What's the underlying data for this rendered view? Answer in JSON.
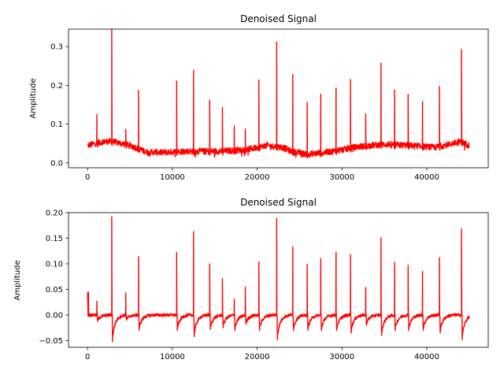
{
  "chart_data": [
    {
      "type": "line",
      "title": "Denoised Signal",
      "xlabel": "",
      "ylabel": "Amplitude",
      "xlim": [
        -2250,
        47250
      ],
      "ylim": [
        -0.0125,
        0.345
      ],
      "xticks": [
        0,
        10000,
        20000,
        30000,
        40000
      ],
      "yticks": [
        0.0,
        0.1,
        0.2,
        0.3
      ],
      "ytick_labels": [
        "0.0",
        "0.1",
        "0.2",
        "0.3"
      ],
      "grid": false,
      "line_color": "#ff0000",
      "baseline_points": [
        [
          0,
          0.045
        ],
        [
          900,
          0.05
        ],
        [
          2000,
          0.055
        ],
        [
          3000,
          0.055
        ],
        [
          5000,
          0.045
        ],
        [
          7000,
          0.028
        ],
        [
          9000,
          0.027
        ],
        [
          11000,
          0.03
        ],
        [
          13000,
          0.03
        ],
        [
          16000,
          0.03
        ],
        [
          19000,
          0.035
        ],
        [
          21000,
          0.045
        ],
        [
          23000,
          0.04
        ],
        [
          24000,
          0.03
        ],
        [
          26000,
          0.022
        ],
        [
          29000,
          0.03
        ],
        [
          32000,
          0.042
        ],
        [
          35000,
          0.048
        ],
        [
          38000,
          0.045
        ],
        [
          41000,
          0.04
        ],
        [
          44000,
          0.055
        ],
        [
          45000,
          0.045
        ]
      ],
      "noise_amplitude": 0.008,
      "peaks": [
        {
          "x": 1100,
          "y": 0.125
        },
        {
          "x": 2850,
          "y": 0.345
        },
        {
          "x": 4500,
          "y": 0.087
        },
        {
          "x": 6000,
          "y": 0.187
        },
        {
          "x": 10500,
          "y": 0.211
        },
        {
          "x": 12500,
          "y": 0.239
        },
        {
          "x": 14400,
          "y": 0.162
        },
        {
          "x": 15900,
          "y": 0.143
        },
        {
          "x": 17300,
          "y": 0.095
        },
        {
          "x": 18600,
          "y": 0.087
        },
        {
          "x": 20200,
          "y": 0.214
        },
        {
          "x": 22300,
          "y": 0.312
        },
        {
          "x": 24200,
          "y": 0.228
        },
        {
          "x": 25900,
          "y": 0.156
        },
        {
          "x": 27500,
          "y": 0.177
        },
        {
          "x": 29300,
          "y": 0.193
        },
        {
          "x": 31000,
          "y": 0.215
        },
        {
          "x": 32800,
          "y": 0.126
        },
        {
          "x": 34600,
          "y": 0.257
        },
        {
          "x": 36200,
          "y": 0.188
        },
        {
          "x": 37800,
          "y": 0.177
        },
        {
          "x": 39500,
          "y": 0.158
        },
        {
          "x": 41500,
          "y": 0.197
        },
        {
          "x": 44100,
          "y": 0.292
        }
      ]
    },
    {
      "type": "line",
      "title": "Denoised Signal",
      "xlabel": "",
      "ylabel": "Amplitude",
      "xlim": [
        -2250,
        47250
      ],
      "ylim": [
        -0.063,
        0.2
      ],
      "xticks": [
        0,
        10000,
        20000,
        30000,
        40000
      ],
      "yticks": [
        -0.05,
        0.0,
        0.05,
        0.1,
        0.15,
        0.2
      ],
      "ytick_labels": [
        "−0.05",
        "0.00",
        "0.05",
        "0.10",
        "0.15",
        "0.20"
      ],
      "grid": false,
      "line_color": "#ff0000",
      "baseline_points": [
        [
          0,
          0.0
        ],
        [
          45000,
          0.0
        ]
      ],
      "noise_amplitude": 0.003,
      "start_spike": {
        "x": 100,
        "y": 0.045
      },
      "peaks": [
        {
          "x": 1100,
          "y": 0.027,
          "trough": -0.012
        },
        {
          "x": 2850,
          "y": 0.192,
          "trough": -0.052
        },
        {
          "x": 4500,
          "y": 0.043,
          "trough": -0.01
        },
        {
          "x": 6000,
          "y": 0.114,
          "trough": -0.03
        },
        {
          "x": 10500,
          "y": 0.122,
          "trough": -0.03
        },
        {
          "x": 12500,
          "y": 0.163,
          "trough": -0.042
        },
        {
          "x": 14400,
          "y": 0.1,
          "trough": -0.028
        },
        {
          "x": 15900,
          "y": 0.071,
          "trough": -0.025
        },
        {
          "x": 17300,
          "y": 0.031,
          "trough": -0.03
        },
        {
          "x": 18600,
          "y": 0.055,
          "trough": -0.018
        },
        {
          "x": 20200,
          "y": 0.104,
          "trough": -0.03
        },
        {
          "x": 22300,
          "y": 0.189,
          "trough": -0.048
        },
        {
          "x": 24200,
          "y": 0.133,
          "trough": -0.03
        },
        {
          "x": 25900,
          "y": 0.099,
          "trough": -0.03
        },
        {
          "x": 27500,
          "y": 0.11,
          "trough": -0.03
        },
        {
          "x": 29300,
          "y": 0.123,
          "trough": -0.03
        },
        {
          "x": 31000,
          "y": 0.118,
          "trough": -0.035
        },
        {
          "x": 32800,
          "y": 0.054,
          "trough": -0.02
        },
        {
          "x": 34600,
          "y": 0.151,
          "trough": -0.04
        },
        {
          "x": 36200,
          "y": 0.103,
          "trough": -0.03
        },
        {
          "x": 37800,
          "y": 0.097,
          "trough": -0.03
        },
        {
          "x": 39500,
          "y": 0.085,
          "trough": -0.03
        },
        {
          "x": 41500,
          "y": 0.112,
          "trough": -0.035
        },
        {
          "x": 44100,
          "y": 0.168,
          "trough": -0.048
        }
      ]
    }
  ]
}
